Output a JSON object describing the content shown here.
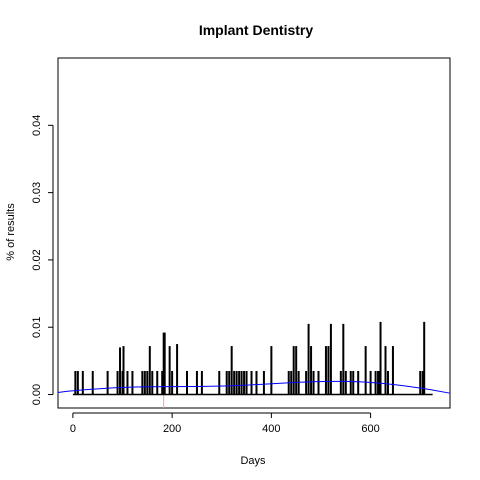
{
  "chart_data": {
    "type": "bar",
    "title": "Implant Dentistry",
    "xlabel": "Days",
    "ylabel": "% of results",
    "xlim": [
      -30,
      760
    ],
    "ylim": [
      -0.002,
      0.05
    ],
    "xticks": [
      0,
      200,
      400,
      600
    ],
    "yticks": [
      0.0,
      0.01,
      0.02,
      0.03,
      0.04
    ],
    "ytick_labels": [
      "0.00",
      "0.01",
      "0.02",
      "0.03",
      "0.04"
    ],
    "series": [
      {
        "x": [
          5,
          10,
          20,
          40,
          70,
          90,
          95,
          100,
          102,
          110,
          120,
          140,
          145,
          150,
          155,
          160,
          170,
          180,
          183,
          185,
          195,
          200,
          210,
          230,
          250,
          260,
          295,
          310,
          315,
          320,
          325,
          330,
          335,
          340,
          345,
          350,
          360,
          370,
          385,
          400,
          435,
          440,
          445,
          450,
          455,
          470,
          475,
          480,
          485,
          495,
          510,
          515,
          520,
          540,
          545,
          550,
          560,
          565,
          575,
          590,
          600,
          610,
          615,
          618,
          620,
          630,
          635,
          645,
          700,
          705,
          708
        ],
        "values": [
          0.0035,
          0.0035,
          0.0035,
          0.0035,
          0.0035,
          0.0035,
          0.007,
          0.0035,
          0.0072,
          0.0035,
          0.0035,
          0.0035,
          0.0035,
          0.0035,
          0.0072,
          0.0035,
          0.0035,
          0.0035,
          0.0092,
          0.0092,
          0.0072,
          0.0035,
          0.0075,
          0.0035,
          0.0035,
          0.0035,
          0.0035,
          0.0035,
          0.0035,
          0.0072,
          0.0035,
          0.0035,
          0.0035,
          0.0035,
          0.0035,
          0.0035,
          0.0035,
          0.0035,
          0.0035,
          0.0072,
          0.0035,
          0.0035,
          0.0072,
          0.0072,
          0.0035,
          0.0035,
          0.0105,
          0.0072,
          0.0035,
          0.0035,
          0.0072,
          0.0072,
          0.0105,
          0.0035,
          0.0105,
          0.0035,
          0.0035,
          0.0035,
          0.0035,
          0.0072,
          0.0035,
          0.0035,
          0.0035,
          0.0035,
          0.0108,
          0.0072,
          0.0035,
          0.0072,
          0.0035,
          0.0035,
          0.0108
        ],
        "color": "#000000"
      },
      {
        "x": [
          -30,
          0,
          100,
          200,
          300,
          400,
          500,
          600,
          700,
          760
        ],
        "values": [
          0.0003,
          0.0006,
          0.0011,
          0.0012,
          0.0012,
          0.0016,
          0.002,
          0.0019,
          0.001,
          0.0002
        ],
        "type": "line",
        "color": "#0000ff"
      }
    ],
    "baseline": {
      "x": [
        0,
        725
      ],
      "values": [
        0,
        0
      ],
      "color": "#000000"
    },
    "marker_line": {
      "x": 183,
      "color": "#ff9999"
    },
    "grid": false,
    "legend": "none"
  }
}
